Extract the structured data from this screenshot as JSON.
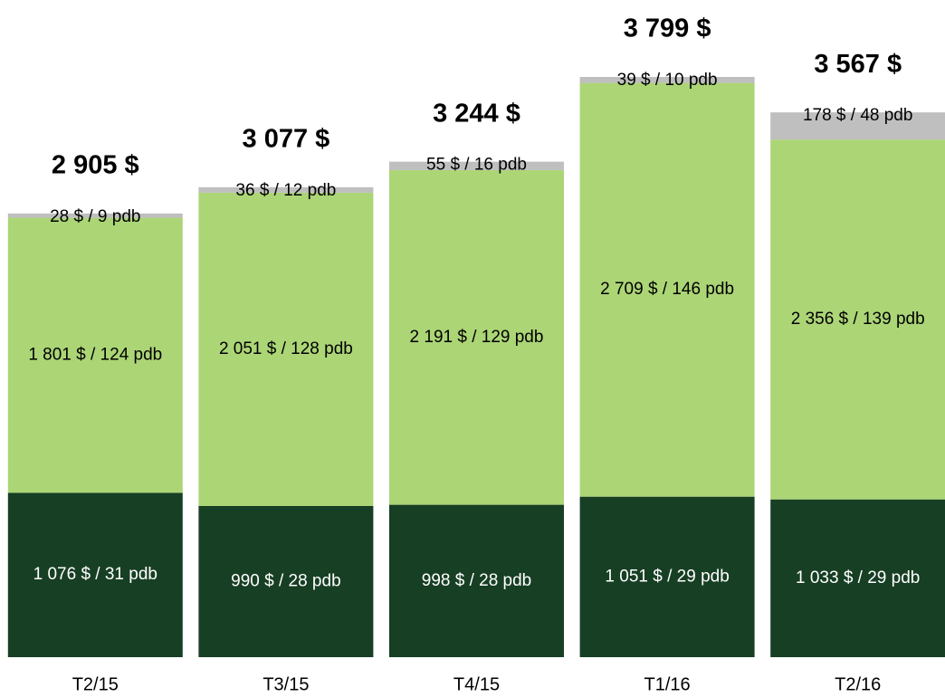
{
  "chart_data": {
    "type": "stacked_bar",
    "categories": [
      "T2/15",
      "T3/15",
      "T4/15",
      "T1/16",
      "T2/16"
    ],
    "series": [
      {
        "color": "#173f24",
        "label_color": "#ffffff",
        "values": [
          1076,
          990,
          998,
          1051,
          1033
        ],
        "value_labels": [
          "1 076 $ / 31 pdb",
          "990 $ / 28 pdb",
          "998 $ / 28 pdb",
          "1 051 $ / 29 pdb",
          "1 033 $ / 29 pdb"
        ]
      },
      {
        "color": "#acd576",
        "label_color": "#000000",
        "values": [
          1801,
          2051,
          2191,
          2709,
          2356
        ],
        "value_labels": [
          "1 801 $ / 124 pdb",
          "2 051 $ / 128 pdb",
          "2 191 $ / 129 pdb",
          "2 709 $ / 146 pdb",
          "2 356 $ / 139 pdb"
        ]
      },
      {
        "color": "#bfbfbf",
        "label_color": "#000000",
        "values": [
          28,
          36,
          55,
          39,
          178
        ],
        "value_labels": [
          "28 $ / 9 pdb",
          "36 $ / 12 pdb",
          "55 $ / 16 pdb",
          "39 $ / 10 pdb",
          "178 $ / 48 pdb"
        ]
      }
    ],
    "totals": [
      2905,
      3077,
      3244,
      3799,
      3567
    ],
    "total_labels": [
      "2 905 $",
      "3 077 $",
      "3 244 $",
      "3 799 $",
      "3 567 $"
    ]
  }
}
